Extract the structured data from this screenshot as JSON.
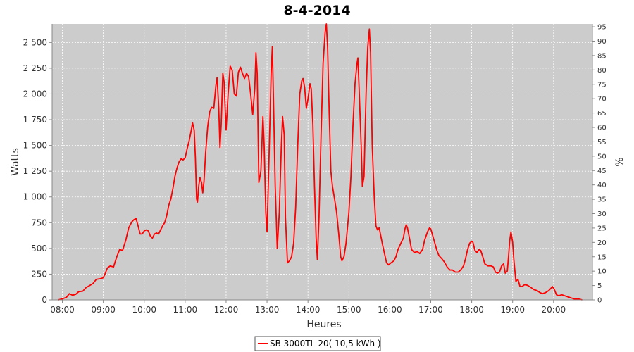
{
  "chart_data": {
    "type": "line",
    "title": "8-4-2014",
    "xlabel": "Heures",
    "ylabel": "Watts",
    "y2label": "%",
    "xlim": [
      7.75,
      20.95
    ],
    "ylim": [
      0,
      2680
    ],
    "y2lim": [
      0,
      96
    ],
    "grid": true,
    "legend_position": "bottom-center",
    "x_ticks": [
      8,
      9,
      10,
      11,
      12,
      13,
      14,
      15,
      16,
      17,
      18,
      19,
      20
    ],
    "x_tick_labels": [
      "08:00",
      "09:00",
      "10:00",
      "11:00",
      "12:00",
      "13:00",
      "14:00",
      "15:00",
      "16:00",
      "17:00",
      "18:00",
      "19:00",
      "20:00"
    ],
    "y_ticks": [
      0,
      250,
      500,
      750,
      1000,
      1250,
      1500,
      1750,
      2000,
      2250,
      2500
    ],
    "y_tick_labels": [
      "0",
      "250",
      "500",
      "750",
      "1 000",
      "1 250",
      "1 500",
      "1 750",
      "2 000",
      "2 250",
      "2 500"
    ],
    "y2_ticks": [
      0,
      5,
      10,
      15,
      20,
      25,
      30,
      35,
      40,
      45,
      50,
      55,
      60,
      65,
      70,
      75,
      80,
      85,
      90,
      95
    ],
    "y2_tick_labels": [
      "0",
      "5",
      "10",
      "15",
      "20",
      "25",
      "30",
      "35",
      "40",
      "45",
      "50",
      "55",
      "60",
      "65",
      "70",
      "75",
      "80",
      "85",
      "90",
      "95"
    ],
    "colors": {
      "plot_background": "#cccccc",
      "grid": "#ffffff",
      "series": "#ff0000"
    },
    "series": [
      {
        "name": "SB 3000TL-20( 10,5 kWh )",
        "color": "#ff0000",
        "points": [
          [
            7.9,
            0
          ],
          [
            8.0,
            10
          ],
          [
            8.1,
            25
          ],
          [
            8.17,
            60
          ],
          [
            8.25,
            45
          ],
          [
            8.33,
            55
          ],
          [
            8.4,
            80
          ],
          [
            8.5,
            85
          ],
          [
            8.58,
            120
          ],
          [
            8.67,
            140
          ],
          [
            8.75,
            160
          ],
          [
            8.83,
            200
          ],
          [
            8.92,
            205
          ],
          [
            9.0,
            215
          ],
          [
            9.05,
            260
          ],
          [
            9.1,
            310
          ],
          [
            9.17,
            330
          ],
          [
            9.25,
            320
          ],
          [
            9.33,
            420
          ],
          [
            9.4,
            490
          ],
          [
            9.47,
            480
          ],
          [
            9.55,
            580
          ],
          [
            9.62,
            700
          ],
          [
            9.7,
            760
          ],
          [
            9.75,
            780
          ],
          [
            9.8,
            790
          ],
          [
            9.85,
            720
          ],
          [
            9.9,
            640
          ],
          [
            9.95,
            640
          ],
          [
            10.0,
            670
          ],
          [
            10.05,
            680
          ],
          [
            10.1,
            670
          ],
          [
            10.15,
            620
          ],
          [
            10.2,
            600
          ],
          [
            10.25,
            640
          ],
          [
            10.3,
            650
          ],
          [
            10.35,
            640
          ],
          [
            10.4,
            680
          ],
          [
            10.45,
            720
          ],
          [
            10.5,
            750
          ],
          [
            10.55,
            820
          ],
          [
            10.6,
            920
          ],
          [
            10.65,
            980
          ],
          [
            10.7,
            1080
          ],
          [
            10.75,
            1200
          ],
          [
            10.8,
            1280
          ],
          [
            10.85,
            1340
          ],
          [
            10.9,
            1370
          ],
          [
            10.95,
            1360
          ],
          [
            11.0,
            1380
          ],
          [
            11.05,
            1470
          ],
          [
            11.1,
            1550
          ],
          [
            11.15,
            1650
          ],
          [
            11.18,
            1720
          ],
          [
            11.22,
            1650
          ],
          [
            11.25,
            1380
          ],
          [
            11.28,
            980
          ],
          [
            11.3,
            950
          ],
          [
            11.33,
            1100
          ],
          [
            11.36,
            1190
          ],
          [
            11.4,
            1140
          ],
          [
            11.43,
            1040
          ],
          [
            11.46,
            1150
          ],
          [
            11.5,
            1430
          ],
          [
            11.55,
            1680
          ],
          [
            11.6,
            1830
          ],
          [
            11.65,
            1870
          ],
          [
            11.7,
            1860
          ],
          [
            11.75,
            2080
          ],
          [
            11.78,
            2160
          ],
          [
            11.82,
            1870
          ],
          [
            11.85,
            1480
          ],
          [
            11.88,
            1700
          ],
          [
            11.92,
            2200
          ],
          [
            11.95,
            2120
          ],
          [
            12.0,
            1650
          ],
          [
            12.05,
            2000
          ],
          [
            12.1,
            2270
          ],
          [
            12.15,
            2230
          ],
          [
            12.2,
            2000
          ],
          [
            12.25,
            1980
          ],
          [
            12.3,
            2210
          ],
          [
            12.35,
            2260
          ],
          [
            12.4,
            2200
          ],
          [
            12.45,
            2150
          ],
          [
            12.5,
            2200
          ],
          [
            12.55,
            2170
          ],
          [
            12.6,
            2000
          ],
          [
            12.65,
            1800
          ],
          [
            12.7,
            2050
          ],
          [
            12.73,
            2400
          ],
          [
            12.76,
            2200
          ],
          [
            12.8,
            1140
          ],
          [
            12.85,
            1250
          ],
          [
            12.9,
            1780
          ],
          [
            12.93,
            1500
          ],
          [
            12.97,
            850
          ],
          [
            13.0,
            660
          ],
          [
            13.05,
            1400
          ],
          [
            13.1,
            2200
          ],
          [
            13.13,
            2460
          ],
          [
            13.16,
            1900
          ],
          [
            13.2,
            1100
          ],
          [
            13.25,
            500
          ],
          [
            13.3,
            850
          ],
          [
            13.35,
            1500
          ],
          [
            13.38,
            1780
          ],
          [
            13.42,
            1600
          ],
          [
            13.45,
            800
          ],
          [
            13.5,
            360
          ],
          [
            13.55,
            380
          ],
          [
            13.6,
            420
          ],
          [
            13.65,
            550
          ],
          [
            13.7,
            900
          ],
          [
            13.75,
            1500
          ],
          [
            13.8,
            2000
          ],
          [
            13.85,
            2130
          ],
          [
            13.88,
            2150
          ],
          [
            13.92,
            2060
          ],
          [
            13.96,
            1860
          ],
          [
            14.0,
            1950
          ],
          [
            14.05,
            2100
          ],
          [
            14.08,
            2050
          ],
          [
            14.12,
            1700
          ],
          [
            14.16,
            1100
          ],
          [
            14.2,
            600
          ],
          [
            14.23,
            390
          ],
          [
            14.27,
            800
          ],
          [
            14.32,
            1600
          ],
          [
            14.37,
            2300
          ],
          [
            14.42,
            2600
          ],
          [
            14.45,
            2680
          ],
          [
            14.48,
            2450
          ],
          [
            14.52,
            1800
          ],
          [
            14.56,
            1250
          ],
          [
            14.6,
            1100
          ],
          [
            14.65,
            980
          ],
          [
            14.7,
            850
          ],
          [
            14.75,
            650
          ],
          [
            14.8,
            420
          ],
          [
            14.83,
            380
          ],
          [
            14.88,
            420
          ],
          [
            14.93,
            550
          ],
          [
            15.0,
            850
          ],
          [
            15.05,
            1200
          ],
          [
            15.1,
            1700
          ],
          [
            15.15,
            2100
          ],
          [
            15.2,
            2300
          ],
          [
            15.22,
            2350
          ],
          [
            15.25,
            2050
          ],
          [
            15.3,
            1500
          ],
          [
            15.33,
            1100
          ],
          [
            15.37,
            1200
          ],
          [
            15.42,
            2000
          ],
          [
            15.46,
            2450
          ],
          [
            15.5,
            2630
          ],
          [
            15.53,
            2400
          ],
          [
            15.57,
            1500
          ],
          [
            15.62,
            1000
          ],
          [
            15.66,
            720
          ],
          [
            15.7,
            680
          ],
          [
            15.74,
            700
          ],
          [
            15.78,
            620
          ],
          [
            15.82,
            540
          ],
          [
            15.87,
            450
          ],
          [
            15.92,
            360
          ],
          [
            15.97,
            340
          ],
          [
            16.03,
            360
          ],
          [
            16.1,
            380
          ],
          [
            16.15,
            420
          ],
          [
            16.2,
            490
          ],
          [
            16.27,
            550
          ],
          [
            16.33,
            600
          ],
          [
            16.37,
            690
          ],
          [
            16.4,
            730
          ],
          [
            16.43,
            700
          ],
          [
            16.48,
            600
          ],
          [
            16.53,
            490
          ],
          [
            16.6,
            460
          ],
          [
            16.67,
            470
          ],
          [
            16.73,
            450
          ],
          [
            16.8,
            490
          ],
          [
            16.85,
            580
          ],
          [
            16.92,
            660
          ],
          [
            16.97,
            700
          ],
          [
            17.0,
            690
          ],
          [
            17.05,
            620
          ],
          [
            17.1,
            550
          ],
          [
            17.15,
            480
          ],
          [
            17.2,
            430
          ],
          [
            17.27,
            400
          ],
          [
            17.33,
            370
          ],
          [
            17.4,
            320
          ],
          [
            17.47,
            290
          ],
          [
            17.53,
            290
          ],
          [
            17.6,
            270
          ],
          [
            17.67,
            270
          ],
          [
            17.73,
            290
          ],
          [
            17.8,
            330
          ],
          [
            17.85,
            400
          ],
          [
            17.9,
            490
          ],
          [
            17.95,
            550
          ],
          [
            18.0,
            570
          ],
          [
            18.03,
            560
          ],
          [
            18.08,
            480
          ],
          [
            18.13,
            460
          ],
          [
            18.18,
            490
          ],
          [
            18.22,
            480
          ],
          [
            18.27,
            420
          ],
          [
            18.32,
            350
          ],
          [
            18.4,
            330
          ],
          [
            18.47,
            330
          ],
          [
            18.53,
            320
          ],
          [
            18.58,
            270
          ],
          [
            18.63,
            260
          ],
          [
            18.68,
            270
          ],
          [
            18.73,
            330
          ],
          [
            18.78,
            350
          ],
          [
            18.82,
            260
          ],
          [
            18.87,
            280
          ],
          [
            18.9,
            420
          ],
          [
            18.93,
            580
          ],
          [
            18.96,
            660
          ],
          [
            19.0,
            560
          ],
          [
            19.03,
            390
          ],
          [
            19.08,
            180
          ],
          [
            19.13,
            200
          ],
          [
            19.18,
            130
          ],
          [
            19.23,
            130
          ],
          [
            19.3,
            150
          ],
          [
            19.37,
            140
          ],
          [
            19.45,
            120
          ],
          [
            19.52,
            100
          ],
          [
            19.6,
            90
          ],
          [
            19.67,
            70
          ],
          [
            19.73,
            60
          ],
          [
            19.8,
            70
          ],
          [
            19.88,
            90
          ],
          [
            19.93,
            110
          ],
          [
            19.97,
            130
          ],
          [
            20.02,
            100
          ],
          [
            20.07,
            50
          ],
          [
            20.13,
            40
          ],
          [
            20.2,
            50
          ],
          [
            20.27,
            40
          ],
          [
            20.35,
            30
          ],
          [
            20.42,
            20
          ],
          [
            20.5,
            10
          ],
          [
            20.6,
            10
          ],
          [
            20.7,
            0
          ]
        ]
      }
    ]
  }
}
